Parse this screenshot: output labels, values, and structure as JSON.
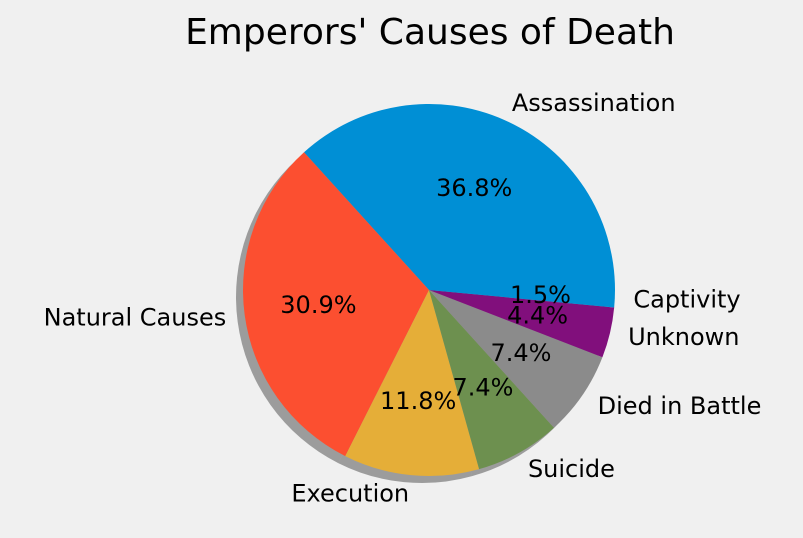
{
  "chart_data": {
    "type": "pie",
    "title": "Emperors' Causes of Death",
    "slices": [
      {
        "label": "Assassination",
        "value": 36.8,
        "pct_label": "36.8%",
        "color": "#008fd5"
      },
      {
        "label": "Natural Causes",
        "value": 30.9,
        "pct_label": "30.9%",
        "color": "#fc4f30"
      },
      {
        "label": "Execution",
        "value": 11.8,
        "pct_label": "11.8%",
        "color": "#e5ae38"
      },
      {
        "label": "Suicide",
        "value": 7.4,
        "pct_label": "7.4%",
        "color": "#6d904f"
      },
      {
        "label": "Died in Battle",
        "value": 7.4,
        "pct_label": "7.4%",
        "color": "#8b8b8b"
      },
      {
        "label": "Unknown",
        "value": 4.4,
        "pct_label": "4.4%",
        "color": "#810f7c"
      },
      {
        "label": "Captivity",
        "value": 1.5,
        "pct_label": "1.5%",
        "color": "#008fd5"
      }
    ],
    "start_angle_deg": 0,
    "direction": "counterclockwise",
    "shadow": true,
    "legend": "none"
  }
}
